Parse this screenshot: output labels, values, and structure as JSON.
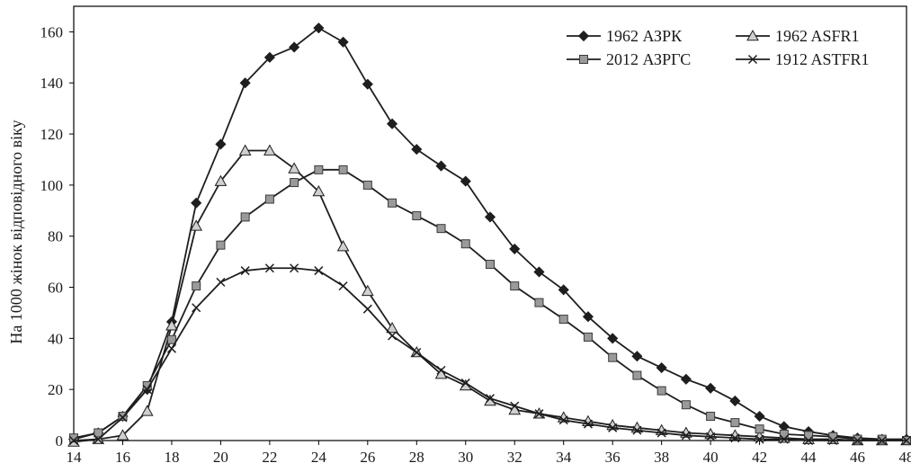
{
  "chart_data": {
    "type": "line",
    "ylabel": "На 1000 жінок відповідного віку",
    "xlabel": "",
    "xlim": [
      14,
      48
    ],
    "ylim": [
      0,
      170
    ],
    "x_ticks": [
      14,
      16,
      18,
      20,
      22,
      24,
      26,
      28,
      30,
      32,
      34,
      36,
      38,
      40,
      42,
      44,
      46,
      48
    ],
    "y_ticks": [
      0,
      20,
      40,
      60,
      80,
      100,
      120,
      140,
      160
    ],
    "grid": false,
    "legend_position": "top-right",
    "x": [
      14,
      15,
      16,
      17,
      18,
      19,
      20,
      21,
      22,
      23,
      24,
      25,
      26,
      27,
      28,
      29,
      30,
      31,
      32,
      33,
      34,
      35,
      36,
      37,
      38,
      39,
      40,
      41,
      42,
      43,
      44,
      45,
      46,
      47,
      48
    ],
    "series": [
      {
        "name": "1962 АЗРК",
        "marker": "diamond",
        "color": "#1e1e1e",
        "values": [
          0.5,
          3,
          9.5,
          20,
          46.5,
          93,
          116,
          140,
          150,
          154,
          161.5,
          156,
          139.5,
          124,
          114,
          107.5,
          101.5,
          87.5,
          75,
          66,
          59,
          48.5,
          40,
          33,
          28.5,
          24,
          20.5,
          15.5,
          9.5,
          5.5,
          3.5,
          2,
          1,
          0.5,
          0.5
        ]
      },
      {
        "name": "1962 ASFR1",
        "marker": "triangle",
        "color": "#1e1e1e",
        "values": [
          -0.5,
          0.5,
          2,
          11.5,
          45,
          84,
          101.5,
          113.5,
          113.5,
          106.5,
          97.5,
          76,
          58.5,
          44,
          34.5,
          26,
          21.5,
          15.5,
          12,
          10.5,
          9,
          7.5,
          6,
          5,
          4,
          3,
          2.5,
          2,
          1.5,
          1,
          0.5,
          0.5,
          0,
          0,
          0
        ]
      },
      {
        "name": "2012 АЗРГС",
        "marker": "square",
        "color": "#9a9a9a",
        "values": [
          1,
          3,
          9.5,
          21.5,
          39.5,
          60.5,
          76.5,
          87.5,
          94.5,
          101,
          106,
          106,
          100,
          93,
          88,
          83,
          77,
          69,
          60.5,
          54,
          47.5,
          40.5,
          32.5,
          25.5,
          19.5,
          14,
          9.5,
          7,
          4.5,
          2.5,
          2,
          1.5,
          0.5,
          0.5,
          0
        ]
      },
      {
        "name": "1912 ASTFR1",
        "marker": "x",
        "color": "#1e1e1e",
        "values": [
          0,
          0.5,
          9,
          20,
          36,
          52,
          62,
          66.5,
          67.5,
          67.5,
          66.5,
          60.5,
          51.5,
          41,
          34.5,
          27.5,
          22.5,
          16.5,
          13.5,
          10.5,
          8,
          6.5,
          5,
          4,
          3,
          2,
          1.5,
          1,
          0.5,
          0.5,
          0,
          0,
          0,
          0,
          0
        ]
      }
    ]
  }
}
